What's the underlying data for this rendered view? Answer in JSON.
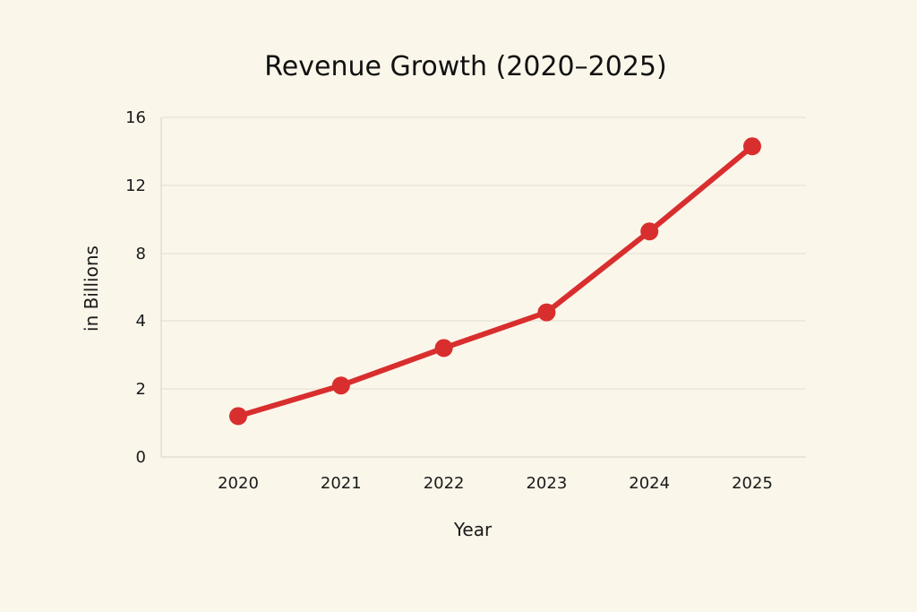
{
  "chart_data": {
    "type": "line",
    "title": "Revenue Growth (2020–2025)",
    "xlabel": "Year",
    "ylabel": "in Billions",
    "categories": [
      "2020",
      "2021",
      "2022",
      "2023",
      "2024",
      "2025"
    ],
    "y_ticks": [
      0,
      2,
      4,
      8,
      12,
      16
    ],
    "series": [
      {
        "values": [
          1.2,
          2.1,
          3.2,
          4.5,
          9.3,
          14.3
        ]
      }
    ],
    "grid": true,
    "colors": {
      "line": "#d92e2e",
      "background": "#fbf6ea"
    }
  }
}
